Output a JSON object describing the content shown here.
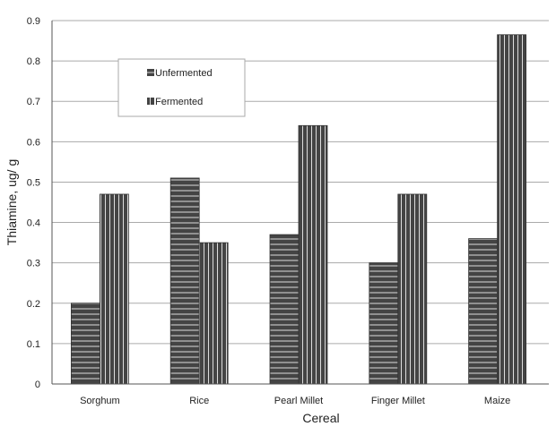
{
  "chart_data": {
    "type": "bar",
    "title": "",
    "xlabel": "Cereal",
    "ylabel": "Thiamine, ug/ g",
    "ylim": [
      0,
      0.9
    ],
    "yticks": [
      "0",
      "0.1",
      "0.2",
      "0.3",
      "0.4",
      "0.5",
      "0.6",
      "0.7",
      "0.8",
      "0.9"
    ],
    "grid": true,
    "legend_position": "top-left (inside plot)",
    "categories": [
      "Sorghum",
      "Rice",
      "Pearl Millet",
      "Finger Millet",
      "Maize"
    ],
    "series": [
      {
        "name": "Unfermented",
        "pattern": "horizontal-stripes",
        "color": "#444444",
        "values": [
          0.2,
          0.51,
          0.37,
          0.3,
          0.36
        ]
      },
      {
        "name": "Fermented",
        "pattern": "vertical-stripes",
        "color": "#444444",
        "values": [
          0.47,
          0.35,
          0.64,
          0.47,
          0.865
        ]
      }
    ]
  }
}
